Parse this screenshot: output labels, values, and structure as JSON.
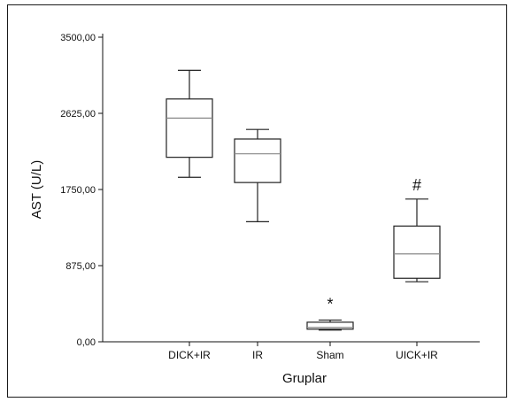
{
  "chart_data": {
    "type": "box",
    "xlabel": "Gruplar",
    "ylabel": "AST (U/L)",
    "ylim": [
      0,
      3500
    ],
    "yticks": [
      0,
      875,
      1750,
      2625,
      3500
    ],
    "ytick_labels": [
      "0,00",
      "875,00",
      "1750,00",
      "2625,00",
      "3500,00"
    ],
    "categories": [
      "DICK+IR",
      "IR",
      "Sham",
      "UICK+IR"
    ],
    "boxes": [
      {
        "category": "DICK+IR",
        "min": 1890,
        "q1": 2120,
        "median": 2570,
        "q3": 2790,
        "max": 3120,
        "mark": ""
      },
      {
        "category": "IR",
        "min": 1380,
        "q1": 1830,
        "median": 2160,
        "q3": 2330,
        "max": 2440,
        "mark": ""
      },
      {
        "category": "Sham",
        "min": 135,
        "q1": 145,
        "median": 165,
        "q3": 225,
        "max": 250,
        "mark": "*"
      },
      {
        "category": "UICK+IR",
        "min": 690,
        "q1": 730,
        "median": 1010,
        "q3": 1330,
        "max": 1640,
        "mark": "#"
      }
    ],
    "grid": false,
    "legend": "none"
  }
}
